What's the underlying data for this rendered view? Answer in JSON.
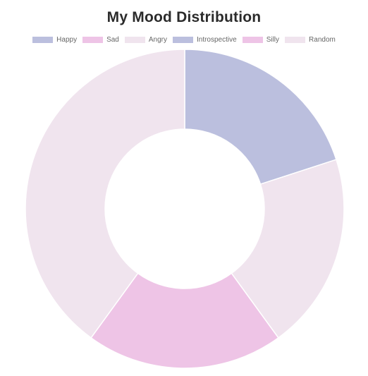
{
  "chart_data": {
    "type": "pie",
    "title": "My Mood Distribution",
    "categories": [
      "Happy",
      "Sad",
      "Angry",
      "Introspective",
      "Silly",
      "Random"
    ],
    "series": [
      {
        "values": [
          20,
          0,
          20,
          0,
          20,
          40
        ]
      }
    ],
    "colors": [
      "#bbbfde",
      "#eec4e6",
      "#f0e4ee",
      "#bbbfde",
      "#eec4e6",
      "#f0e4ee"
    ],
    "legend_position": "top",
    "donut": true
  }
}
